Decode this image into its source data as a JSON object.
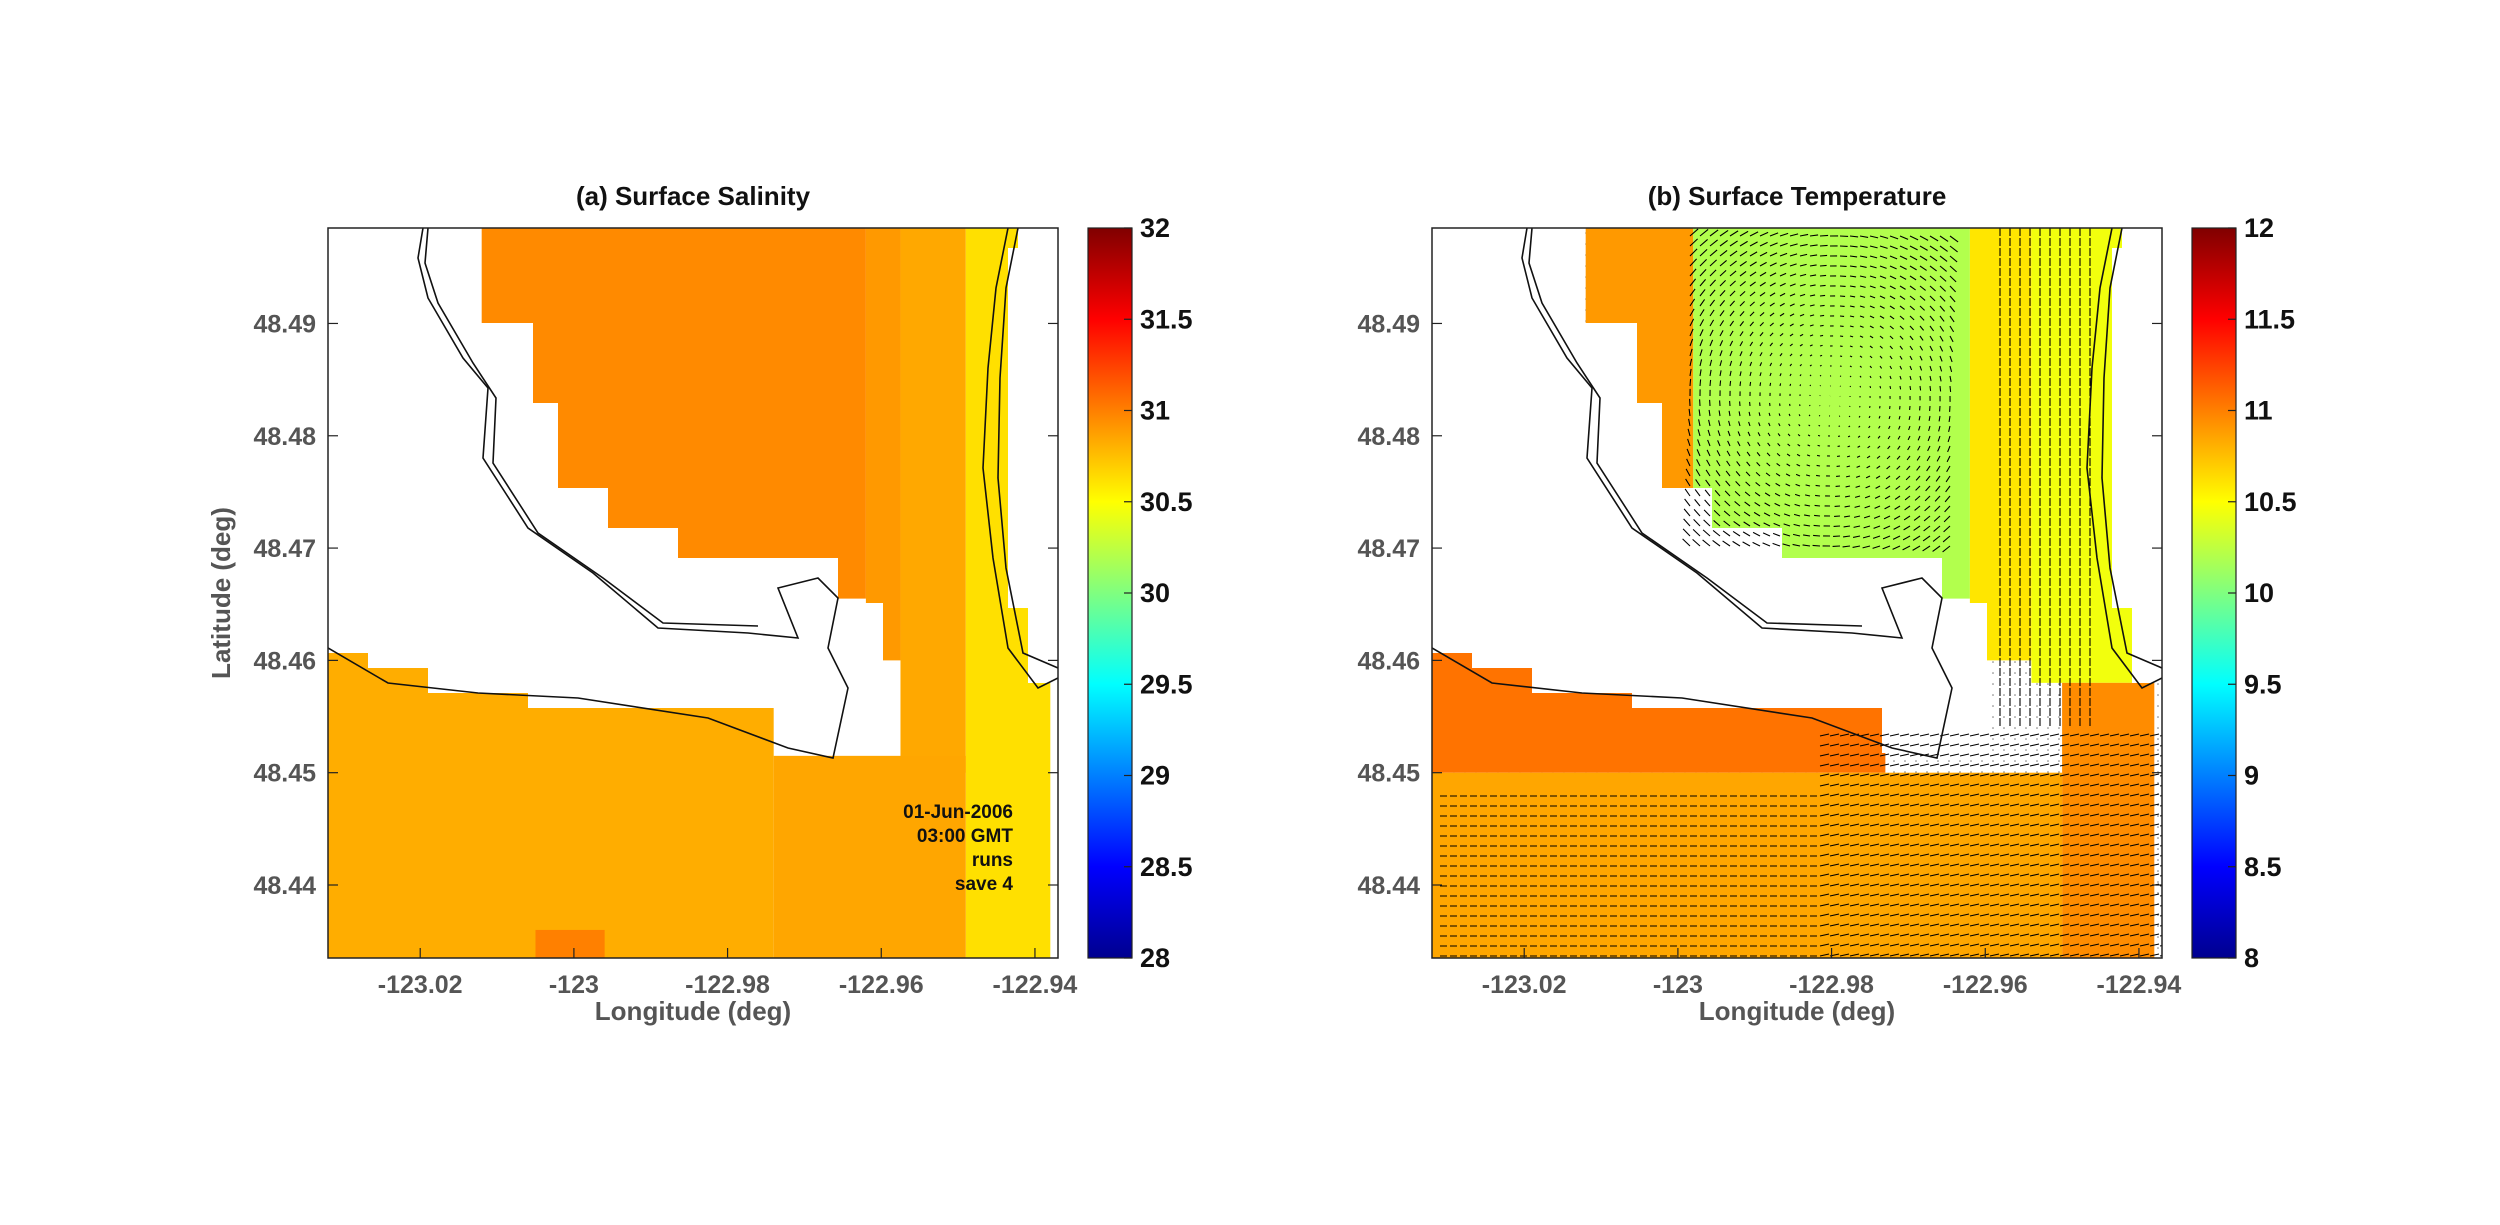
{
  "chart_data": [
    {
      "type": "heatmap",
      "title": "(a) Surface Salinity",
      "xlabel": "Longitude (deg)",
      "ylabel": "Latitude (deg)",
      "xlim": [
        -123.032,
        -122.937
      ],
      "ylim": [
        48.4335,
        48.4985
      ],
      "xticks": [
        -123.02,
        -123,
        -122.98,
        -122.96,
        -122.94
      ],
      "xtick_labels": [
        "-123.02",
        "-123",
        "-122.98",
        "-122.96",
        "-122.94"
      ],
      "yticks": [
        48.44,
        48.45,
        48.46,
        48.47,
        48.48,
        48.49
      ],
      "ytick_labels": [
        "48.44",
        "48.45",
        "48.46",
        "48.47",
        "48.48",
        "48.49"
      ],
      "colorbar": {
        "min": 28,
        "max": 32,
        "colormap": "jet",
        "ticks": [
          28,
          28.5,
          29,
          29.5,
          30,
          30.5,
          31,
          31.5,
          32
        ],
        "tick_labels": [
          "28",
          "28.5",
          "29",
          "29.5",
          "30",
          "30.5",
          "31",
          "31.5",
          "32"
        ]
      },
      "annotation": [
        "01-Jun-2006",
        "03:00 GMT",
        "runs",
        "save 4"
      ],
      "grid": false,
      "vectors": false,
      "regions": [
        {
          "lon": [
            -123.012,
            -122.962
          ],
          "lat": [
            48.4655,
            48.4985
          ],
          "value": 30.96
        },
        {
          "lon": [
            -122.962,
            -122.9575
          ],
          "lat": [
            48.46,
            48.4985
          ],
          "value": 30.9
        },
        {
          "lon": [
            -122.9575,
            -122.949
          ],
          "lat": [
            48.45,
            48.4985
          ],
          "value": 30.84
        },
        {
          "lon": [
            -122.949,
            -122.938
          ],
          "lat": [
            48.4335,
            48.4985
          ],
          "value": 30.62
        },
        {
          "lon": [
            -123.032,
            -122.974
          ],
          "lat": [
            48.4335,
            48.461
          ],
          "value": 30.82
        },
        {
          "lon": [
            -122.974,
            -122.949
          ],
          "lat": [
            48.4335,
            48.4515
          ],
          "value": 30.85
        },
        {
          "lon": [
            -123.005,
            -122.996
          ],
          "lat": [
            48.4335,
            48.436
          ],
          "value": 31.0
        }
      ]
    },
    {
      "type": "heatmap",
      "title": "(b) Surface Temperature",
      "xlabel": "Longitude (deg)",
      "ylabel": "",
      "xlim": [
        -123.032,
        -122.937
      ],
      "ylim": [
        48.4335,
        48.4985
      ],
      "xticks": [
        -123.02,
        -123,
        -122.98,
        -122.96,
        -122.94
      ],
      "xtick_labels": [
        "-123.02",
        "-123",
        "-122.98",
        "-122.96",
        "-122.94"
      ],
      "yticks": [
        48.44,
        48.45,
        48.46,
        48.47,
        48.48,
        48.49
      ],
      "ytick_labels": [
        "48.44",
        "48.45",
        "48.46",
        "48.47",
        "48.48",
        "48.49"
      ],
      "colorbar": {
        "min": 8,
        "max": 12,
        "colormap": "jet",
        "ticks": [
          8,
          8.5,
          9,
          9.5,
          10,
          10.5,
          11,
          11.5,
          12
        ],
        "tick_labels": [
          "8",
          "8.5",
          "9",
          "9.5",
          "10",
          "10.5",
          "11",
          "11.5",
          "12"
        ]
      },
      "grid": false,
      "vectors": true,
      "regions": [
        {
          "lon": [
            -123.012,
            -122.998
          ],
          "lat": [
            48.4655,
            48.4985
          ],
          "value": 10.9
        },
        {
          "lon": [
            -122.998,
            -122.962
          ],
          "lat": [
            48.4655,
            48.4985
          ],
          "value": 10.2
        },
        {
          "lon": [
            -122.962,
            -122.954
          ],
          "lat": [
            48.46,
            48.4985
          ],
          "value": 10.6
        },
        {
          "lon": [
            -122.954,
            -122.938
          ],
          "lat": [
            48.458,
            48.4985
          ],
          "value": 10.45
        },
        {
          "lon": [
            -123.032,
            -122.973
          ],
          "lat": [
            48.45,
            48.462
          ],
          "value": 11.05
        },
        {
          "lon": [
            -123.032,
            -122.95
          ],
          "lat": [
            48.4335,
            48.45
          ],
          "value": 10.85
        },
        {
          "lon": [
            -122.95,
            -122.938
          ],
          "lat": [
            48.4335,
            48.458
          ],
          "value": 10.95
        }
      ]
    }
  ]
}
